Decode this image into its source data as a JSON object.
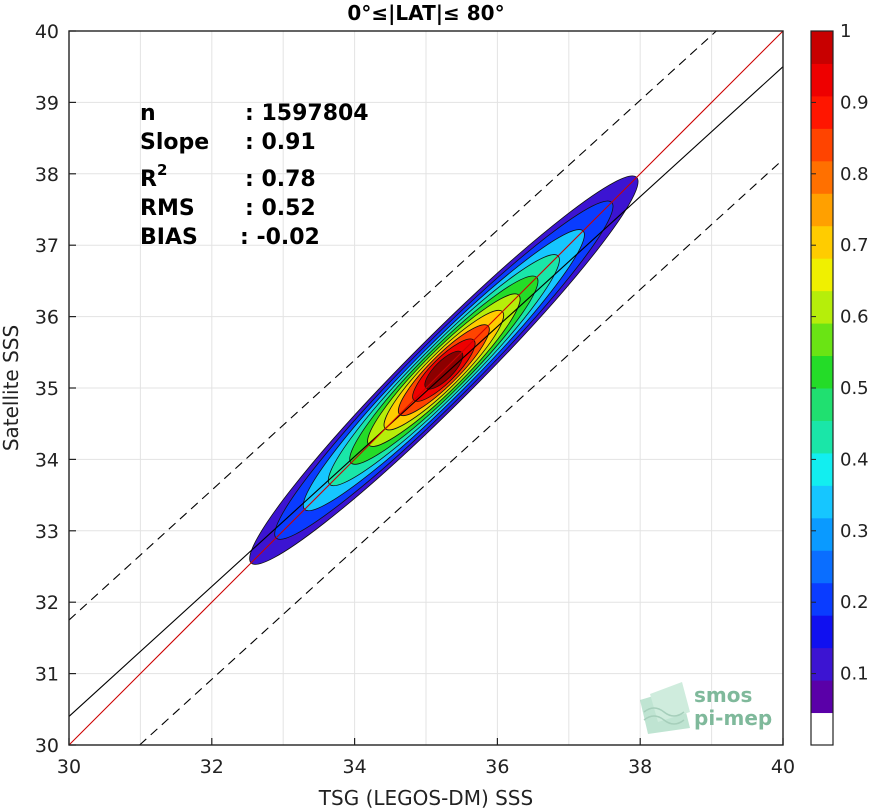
{
  "chart_data": {
    "type": "heatmap",
    "title": "0°≤|LAT|≤ 80°",
    "xlabel": "TSG (LEGOS-DM) SSS",
    "ylabel": "Satellite SSS",
    "xlim": [
      30,
      40
    ],
    "ylim": [
      30,
      40
    ],
    "xticks": [
      "30",
      "32",
      "34",
      "36",
      "38",
      "40"
    ],
    "yticks": [
      "30",
      "31",
      "32",
      "33",
      "34",
      "35",
      "36",
      "37",
      "38",
      "39",
      "40"
    ],
    "grid": true,
    "stats": {
      "n_label": "n",
      "n_value": ": 1597804",
      "slope_label": "Slope",
      "slope_value": ": 0.91",
      "r2_label": "R",
      "r2_sup": "2",
      "r2_value": ": 0.78",
      "rms_label": "RMS",
      "rms_value": ": 0.52",
      "bias_label": "BIAS",
      "bias_value": ": -0.02"
    },
    "lines": {
      "identity": {
        "slope": 1.0,
        "intercept": 0.0,
        "color": "#cc0000"
      },
      "regression": {
        "slope": 0.91,
        "intercept": 3.1,
        "color": "#000000"
      },
      "upper_bound": {
        "slope": 0.91,
        "intercept": 4.45,
        "color": "#000000",
        "dash": true
      },
      "lower_bound": {
        "slope": 0.91,
        "intercept": 1.8,
        "color": "#000000",
        "dash": true
      }
    },
    "density_contours": {
      "center": [
        35.25,
        35.25
      ],
      "levels": [
        0.05,
        0.15,
        0.25,
        0.35,
        0.45,
        0.55,
        0.65,
        0.75,
        0.85,
        0.95
      ],
      "half_lengths": [
        2.7,
        2.35,
        1.95,
        1.6,
        1.3,
        1.05,
        0.82,
        0.62,
        0.42,
        0.25
      ],
      "half_widths": [
        0.33,
        0.3,
        0.27,
        0.245,
        0.22,
        0.195,
        0.17,
        0.145,
        0.12,
        0.09
      ]
    },
    "colorbar": {
      "ticks": [
        "0.1",
        "0.2",
        "0.3",
        "0.4",
        "0.5",
        "0.6",
        "0.7",
        "0.8",
        "0.9",
        "1"
      ],
      "colors": [
        "#5a00a8",
        "#3c14d2",
        "#1010f0",
        "#0a3cff",
        "#0a6eff",
        "#0a9aff",
        "#16c6ff",
        "#12eef0",
        "#1ae6a8",
        "#20e070",
        "#24dc28",
        "#6ae414",
        "#b6ee0a",
        "#f0f000",
        "#ffcc00",
        "#ffa000",
        "#ff7000",
        "#ff4400",
        "#ff1600",
        "#ee0000",
        "#c80000",
        "#8c0000"
      ]
    },
    "watermark": {
      "line1": "smos",
      "line2": "pi-mep"
    }
  }
}
